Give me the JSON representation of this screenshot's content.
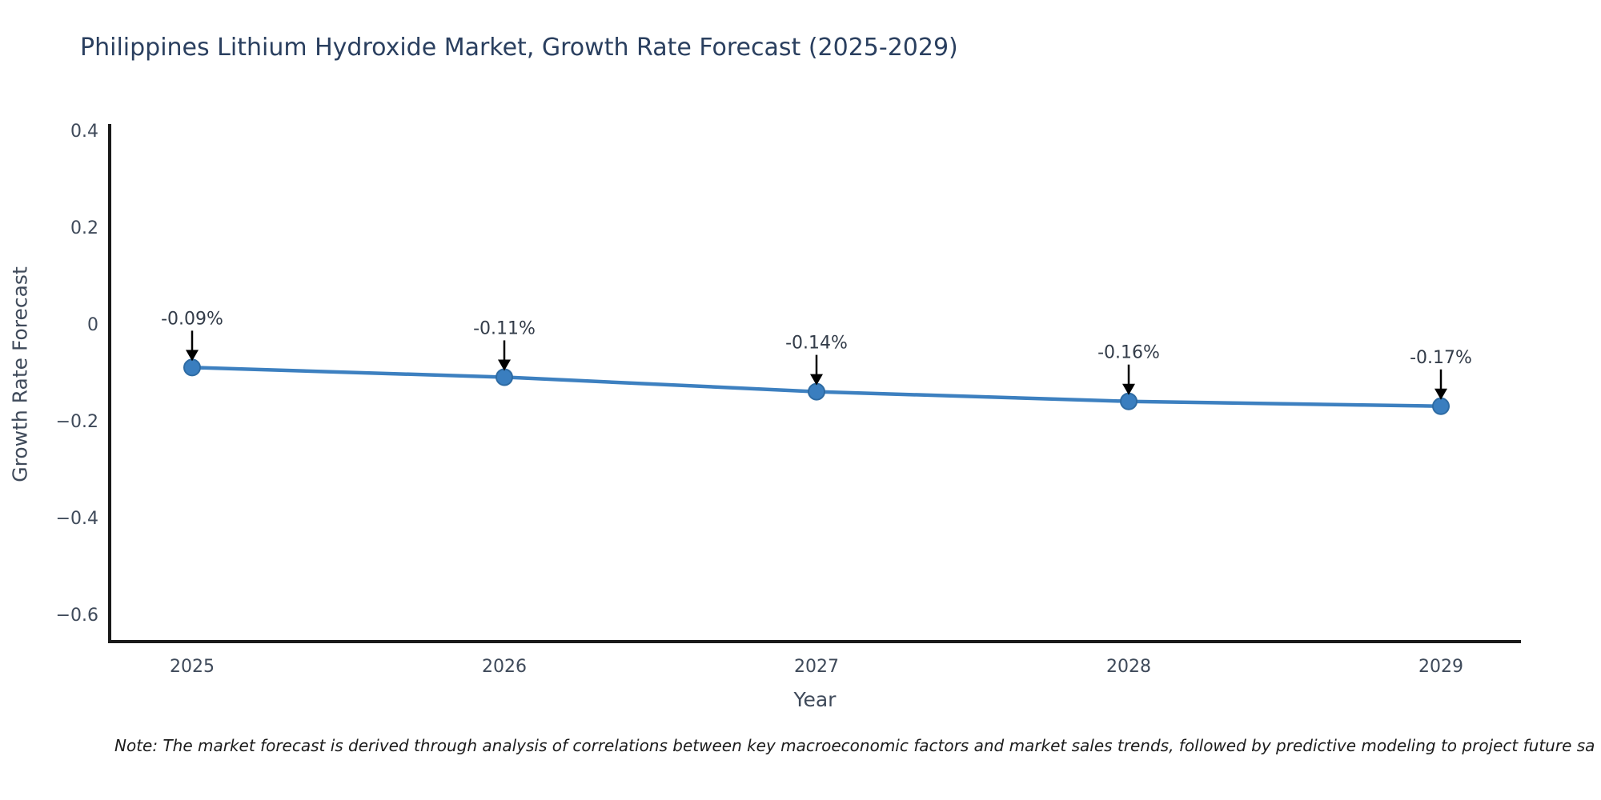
{
  "note": {
    "text": "Note: The market forecast is derived through analysis of correlations between key macroeconomic factors and market sales trends, followed by predictive modeling to project future sa"
  },
  "chart_data": {
    "type": "line",
    "title": "Philippines Lithium Hydroxide Market, Growth Rate Forecast (2025-2029)",
    "xlabel": "Year",
    "ylabel": "Growth Rate Forecast",
    "x": [
      2025,
      2026,
      2027,
      2028,
      2029
    ],
    "series": [
      {
        "name": "Growth Rate Forecast",
        "values": [
          -0.09,
          -0.11,
          -0.14,
          -0.16,
          -0.17
        ]
      }
    ],
    "point_labels": [
      "-0.09%",
      "-0.11%",
      "-0.14%",
      "-0.16%",
      "-0.17%"
    ],
    "yticks": [
      0.4,
      0.2,
      0,
      -0.2,
      -0.4,
      -0.6
    ],
    "ytick_labels": [
      "0.4",
      "0.2",
      "0",
      "−0.2",
      "−0.4",
      "−0.6"
    ],
    "ylim": [
      -0.653,
      0.413
    ],
    "grid": false,
    "legend_position": "none",
    "annotation_style": "black down-arrows from value labels to markers",
    "colors": {
      "line": "#3d80c0",
      "marker_fill": "#3a7ebf",
      "marker_edge": "#2e6ba3",
      "axis_line": "#1a1a1a",
      "title_text": "#2a3f5f",
      "tick_text": "#3f4a5a",
      "annotation_text": "#333c49",
      "arrow": "#000000"
    }
  }
}
